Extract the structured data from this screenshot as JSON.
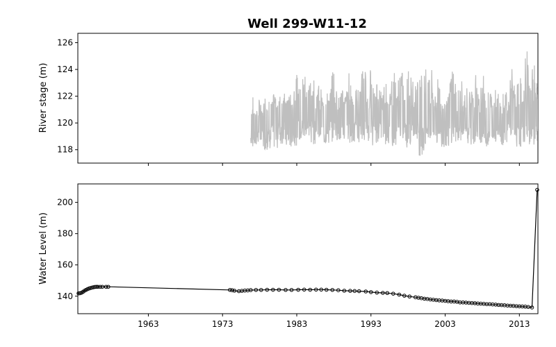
{
  "chart_data": [
    {
      "type": "line",
      "title": "Well 299-W11-12",
      "ylabel": "River stage (m)",
      "xlabel": "",
      "x_range": [
        1953.5,
        2015.5
      ],
      "ylim": [
        117.0,
        126.7
      ],
      "yticks": [
        118,
        120,
        122,
        124,
        126
      ],
      "color": "#bfbfbf",
      "grid": false,
      "series": [
        {
          "values_note_free": true,
          "x": [
            1976.8,
            1977.5,
            1978.5,
            1979.5,
            1980.5,
            1981.5,
            1982.5,
            1983.5,
            1984.5,
            1985.5,
            1986.5,
            1987.5,
            1988.5,
            1989.5,
            1990.5,
            1991.5,
            1992.5,
            1993.5,
            1994.5,
            1995.5,
            1996.5,
            1997.5,
            1998.5,
            1999.5,
            2000.5,
            2001.5,
            2002.5,
            2003.5,
            2004.5,
            2005.5,
            2006.5,
            2007.5,
            2008.5,
            2009.5,
            2010.5,
            2011.5,
            2012.5,
            2013.5,
            2014.5,
            2015.3
          ],
          "high": [
            122.0,
            121.8,
            122.4,
            122.2,
            122.8,
            122.3,
            123.6,
            124.3,
            124.4,
            123.0,
            122.3,
            124.2,
            122.6,
            123.9,
            123.0,
            124.5,
            124.3,
            123.6,
            123.8,
            124.2,
            124.3,
            125.1,
            124.9,
            126.2,
            124.6,
            123.3,
            123.2,
            124.6,
            124.0,
            123.1,
            124.0,
            123.8,
            122.6,
            124.0,
            122.8,
            124.1,
            123.6,
            125.5,
            124.6,
            123.6
          ],
          "low": [
            118.2,
            118.3,
            118.0,
            118.1,
            118.4,
            118.1,
            118.3,
            118.6,
            118.4,
            118.7,
            118.3,
            118.5,
            118.6,
            118.5,
            118.3,
            118.7,
            118.3,
            118.5,
            118.4,
            118.2,
            118.7,
            118.1,
            118.8,
            117.5,
            118.7,
            118.3,
            118.2,
            118.5,
            118.6,
            118.4,
            118.3,
            118.5,
            118.2,
            118.6,
            118.3,
            118.8,
            118.2,
            118.4,
            118.3,
            118.6
          ],
          "mean": [
            120.2,
            120.4,
            120.8,
            121.0,
            121.3,
            121.0,
            121.5,
            121.8,
            121.3,
            121.0,
            121.2,
            121.5,
            121.0,
            121.3,
            121.2,
            121.5,
            121.0,
            121.2,
            120.8,
            120.9,
            121.2,
            121.5,
            121.0,
            121.4,
            121.0,
            120.7,
            120.5,
            121.0,
            120.8,
            120.6,
            120.9,
            120.7,
            120.6,
            120.8,
            120.7,
            121.0,
            120.7,
            121.2,
            120.9,
            121.0
          ]
        }
      ]
    },
    {
      "type": "line",
      "title": "",
      "ylabel": "Water Level (m)",
      "xlabel": "",
      "x_range": [
        1953.5,
        2015.5
      ],
      "ylim": [
        128.8,
        211.8
      ],
      "yticks": [
        140,
        160,
        180,
        200
      ],
      "xticks": [
        1963,
        1973,
        1983,
        1993,
        2003,
        2013
      ],
      "color": "#000000",
      "marker": "open-circle",
      "grid": false,
      "series": [
        {
          "x": [
            1953.6,
            1953.8,
            1954.0,
            1954.2,
            1954.4,
            1954.6,
            1954.8,
            1955.0,
            1955.2,
            1955.4,
            1955.6,
            1955.8,
            1956.0,
            1956.2,
            1956.5,
            1956.8,
            1957.3,
            1957.6,
            1974.0,
            1974.3,
            1974.6,
            1975.2,
            1975.6,
            1976.0,
            1976.4,
            1976.8,
            1977.5,
            1978.2,
            1979.0,
            1979.8,
            1980.6,
            1981.5,
            1982.3,
            1983.2,
            1984.0,
            1984.8,
            1985.6,
            1986.3,
            1987.0,
            1987.8,
            1988.6,
            1989.4,
            1990.2,
            1990.8,
            1991.4,
            1992.3,
            1993.0,
            1993.8,
            1994.6,
            1995.2,
            1996.0,
            1996.8,
            1997.5,
            1998.2,
            1999.0,
            1999.4,
            1999.8,
            2000.2,
            2000.6,
            2001.0,
            2001.4,
            2001.8,
            2002.2,
            2002.6,
            2003.0,
            2003.4,
            2003.8,
            2004.2,
            2004.6,
            2005.0,
            2005.4,
            2005.8,
            2006.2,
            2006.6,
            2007.0,
            2007.4,
            2007.8,
            2008.2,
            2008.6,
            2009.0,
            2009.4,
            2009.8,
            2010.2,
            2010.6,
            2011.0,
            2011.4,
            2011.8,
            2012.2,
            2012.6,
            2013.0,
            2013.4,
            2013.8,
            2014.2,
            2014.7,
            2015.4
          ],
          "y": [
            141.8,
            141.9,
            142.2,
            142.8,
            143.5,
            144.0,
            144.5,
            144.9,
            145.2,
            145.5,
            145.7,
            145.9,
            146.0,
            146.0,
            146.0,
            146.0,
            146.0,
            146.0,
            144.0,
            143.8,
            143.5,
            143.2,
            143.4,
            143.6,
            143.7,
            143.9,
            144.0,
            144.0,
            144.1,
            144.1,
            144.1,
            144.0,
            144.0,
            144.1,
            144.2,
            144.1,
            144.2,
            144.2,
            144.1,
            144.0,
            143.8,
            143.5,
            143.4,
            143.3,
            143.2,
            143.0,
            142.6,
            142.3,
            142.1,
            142.0,
            141.6,
            141.0,
            140.3,
            139.8,
            139.3,
            139.0,
            138.7,
            138.4,
            138.2,
            137.9,
            137.7,
            137.5,
            137.3,
            137.2,
            137.0,
            136.8,
            136.6,
            136.6,
            136.4,
            136.0,
            136.0,
            135.9,
            135.7,
            135.6,
            135.5,
            135.3,
            135.2,
            135.1,
            134.9,
            134.9,
            134.7,
            134.6,
            134.4,
            134.3,
            134.2,
            134.0,
            133.9,
            133.8,
            133.6,
            133.5,
            133.4,
            133.3,
            133.1,
            132.8,
            208.0
          ]
        }
      ]
    }
  ]
}
